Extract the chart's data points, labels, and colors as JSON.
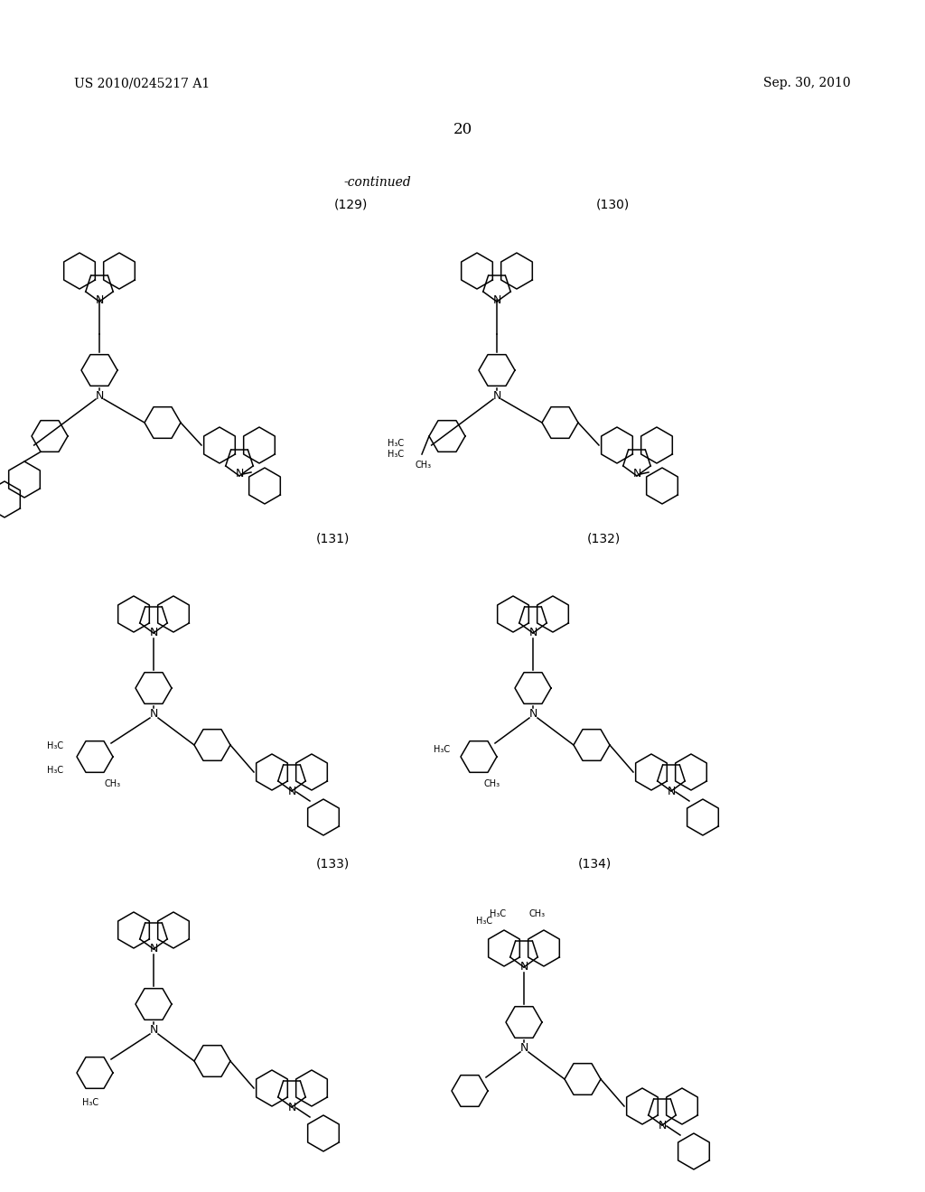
{
  "background_color": "#ffffff",
  "page_number": "20",
  "patent_number": "US 2010/0245217 A1",
  "patent_date": "Sep. 30, 2010",
  "continued_text": "-continued",
  "compound_labels": [
    "(129)",
    "(130)",
    "(131)",
    "(132)",
    "(133)",
    "(134)"
  ],
  "title_fontsize": 11,
  "label_fontsize": 10,
  "text_color": "#000000"
}
